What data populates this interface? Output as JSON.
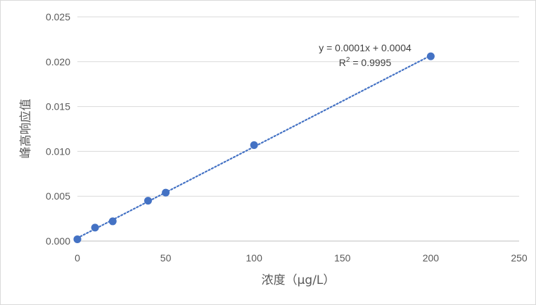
{
  "chart_data": {
    "type": "scatter",
    "title": "",
    "xlabel": "浓度（μg/L）",
    "ylabel": "峰高响应值",
    "xlim": [
      0,
      250
    ],
    "ylim": [
      0,
      0.025
    ],
    "x_ticks": [
      "0",
      "50",
      "100",
      "150",
      "200",
      "250"
    ],
    "y_ticks": [
      "0.000",
      "0.005",
      "0.010",
      "0.015",
      "0.020",
      "0.025"
    ],
    "grid": "horizontal",
    "legend": "none",
    "series": [
      {
        "x": [
          0,
          10,
          20,
          40,
          50,
          100,
          200
        ],
        "y": [
          0.0002,
          0.0015,
          0.0022,
          0.0045,
          0.0054,
          0.0107,
          0.0206
        ],
        "color": "#4472c4"
      }
    ],
    "trendline": {
      "type": "linear",
      "style": "dotted",
      "color": "#4472c4",
      "slope": 0.0001,
      "intercept": 0.0004,
      "x_range": [
        0,
        200
      ],
      "equation": "y = 0.0001x + 0.0004",
      "r2_prefix": "R",
      "r2_superscript": "2",
      "r2_value": " = 0.9995"
    }
  }
}
